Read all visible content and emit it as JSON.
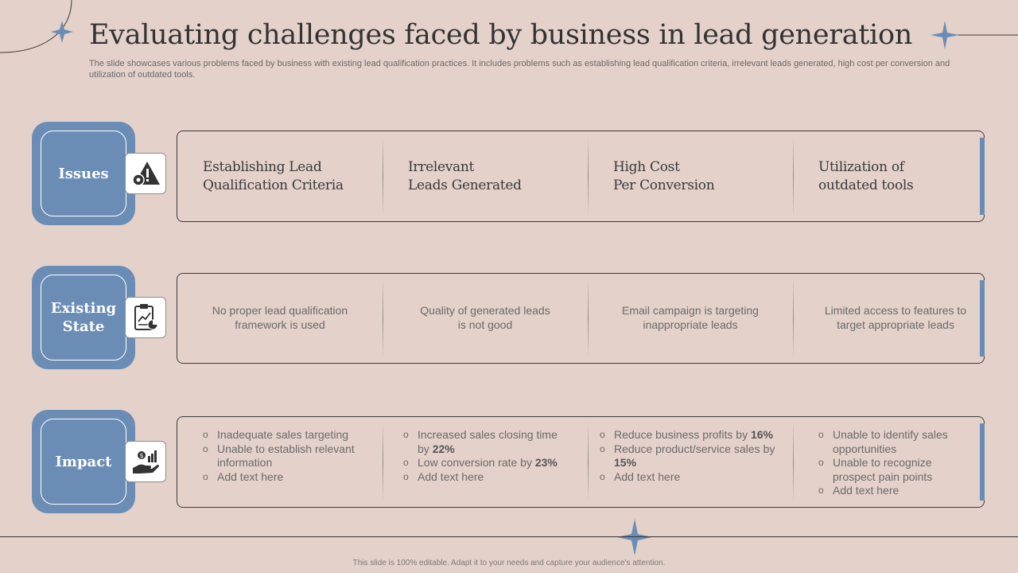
{
  "title": "Evaluating challenges faced by business in lead generation",
  "subtitle": "The slide showcases various problems faced by business with existing lead qualification practices. It includes problems such as establishing lead qualification criteria, irrelevant leads generated, high cost per conversion and utilization of outdated tools.",
  "colors": {
    "accent": "#6b8db5",
    "background": "#e4d1ca"
  },
  "rows": [
    {
      "label": "Issues",
      "icon": "warning-gear-icon"
    },
    {
      "label": "Existing State",
      "icon": "clipboard-chart-icon"
    },
    {
      "label": "Impact",
      "icon": "hand-money-icon"
    }
  ],
  "issues": [
    {
      "line1": "Establishing Lead",
      "line2": "Qualification Criteria"
    },
    {
      "line1": "Irrelevant",
      "line2": "Leads Generated"
    },
    {
      "line1": "High Cost",
      "line2": "Per Conversion"
    },
    {
      "line1": "Utilization of",
      "line2": "outdated tools"
    }
  ],
  "existing_state": [
    {
      "line1": "No proper lead qualification",
      "line2": "framework is used"
    },
    {
      "line1": "Quality of generated leads",
      "line2": "is not good"
    },
    {
      "line1": "Email campaign is targeting",
      "line2": "inappropriate leads"
    },
    {
      "line1": "Limited access to features to",
      "line2": "target appropriate leads"
    }
  ],
  "impact": {
    "col1": {
      "b1": "Inadequate sales targeting",
      "b2": "Unable to establish relevant information",
      "b3": "Add text here"
    },
    "col2": {
      "b1_text": "Increased sales closing time by ",
      "b1_bold": "22%",
      "b2_text": "Low conversion rate by ",
      "b2_bold": "23%",
      "b3": "Add text here"
    },
    "col3": {
      "b1_text": "Reduce business profits by ",
      "b1_bold": "16%",
      "b2_text": "Reduce product/service sales by ",
      "b2_bold": "15%",
      "b3": "Add text here"
    },
    "col4": {
      "b1": "Unable to identify sales opportunities",
      "b2": "Unable to recognize prospect pain points",
      "b3": "Add text here"
    }
  },
  "footer": "This slide is 100% editable. Adapt it to your needs and capture your audience's attention."
}
